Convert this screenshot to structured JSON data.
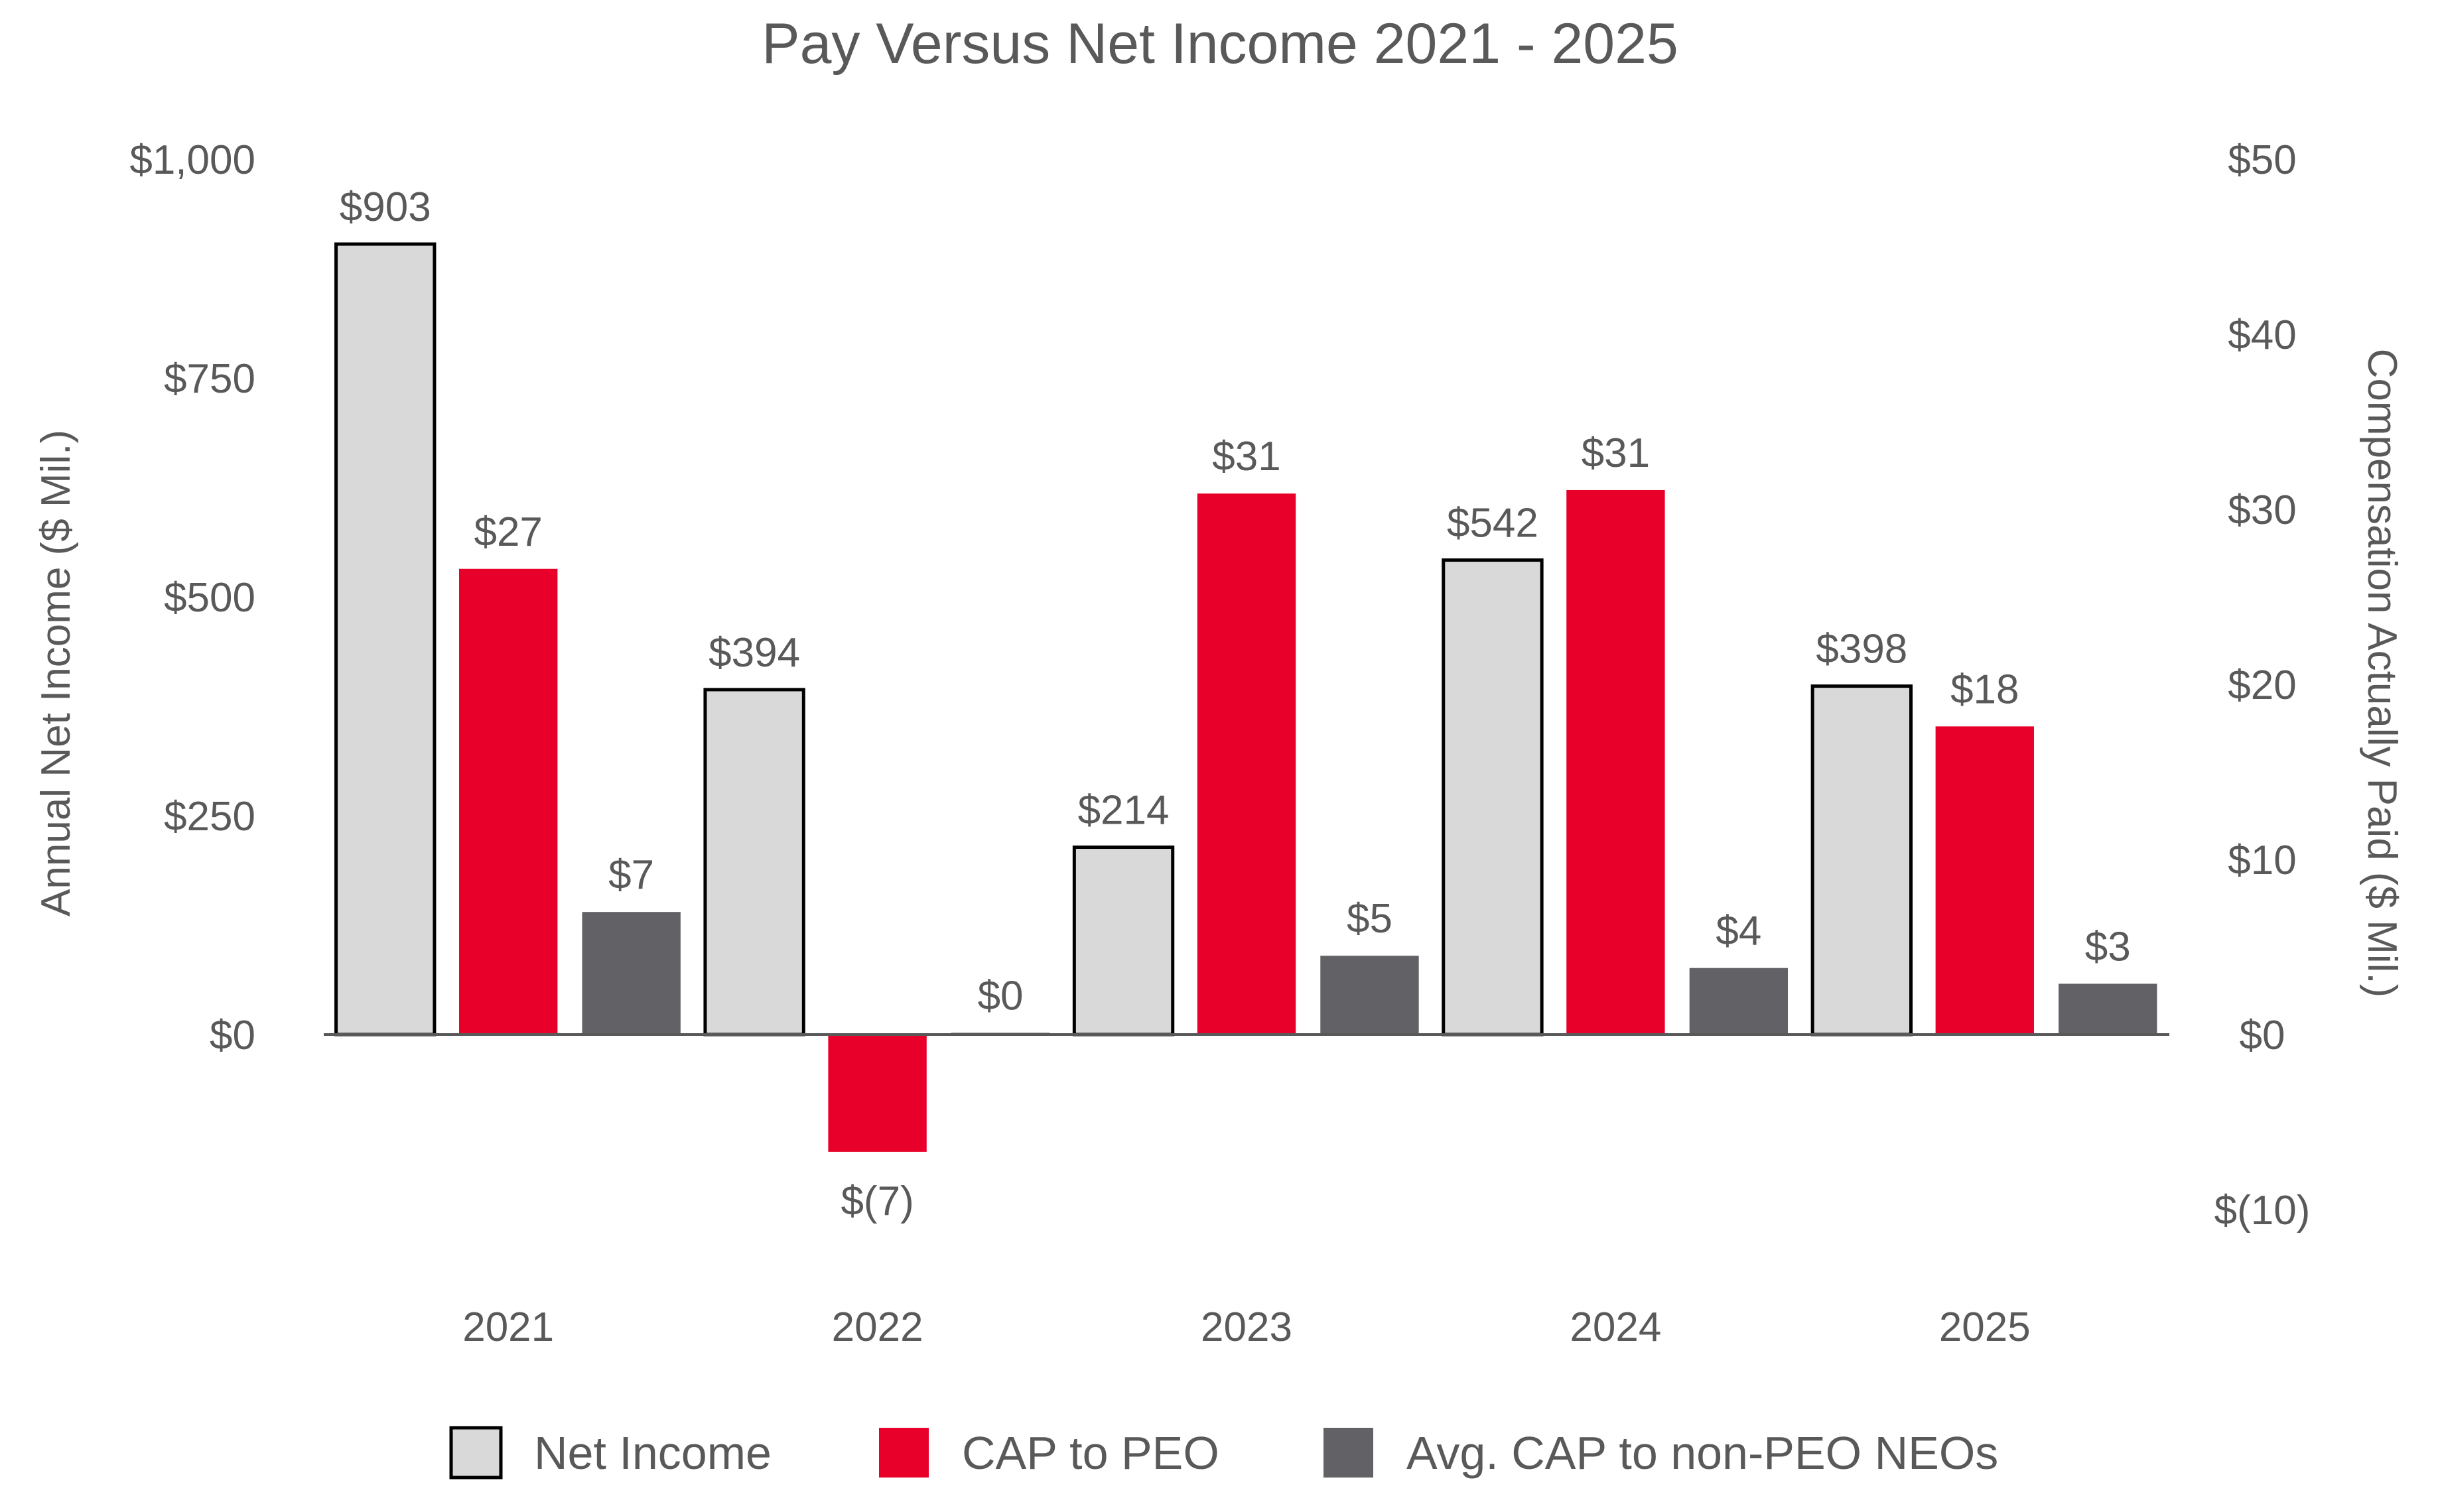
{
  "chart_data": {
    "type": "bar",
    "title": "Pay Versus Net Income 2021 - 2025",
    "categories": [
      "2021",
      "2022",
      "2023",
      "2024",
      "2025"
    ],
    "y_left": {
      "label": "Annual Net Income ($ Mil.)",
      "lim": [
        -200,
        1000
      ],
      "ticks": [
        0,
        250,
        500,
        750,
        1000
      ],
      "tick_labels": [
        "$0",
        "$250",
        "$500",
        "$750",
        "$1,000"
      ]
    },
    "y_right": {
      "label": "Compensation Actually Paid ($ Mil.)",
      "lim": [
        -10,
        50
      ],
      "ticks": [
        -10,
        0,
        10,
        20,
        30,
        40,
        50
      ],
      "tick_labels": [
        "$(10)",
        "$0",
        "$10",
        "$20",
        "$30",
        "$40",
        "$50"
      ]
    },
    "series": [
      {
        "name": "Net Income",
        "axis": "left",
        "color": "#d9d9d9",
        "outline": "#000000",
        "values": [
          903,
          394,
          214,
          542,
          398
        ],
        "labels": [
          "$903",
          "$394",
          "$214",
          "$542",
          "$398"
        ]
      },
      {
        "name": "CAP to PEO",
        "axis": "right",
        "color": "#e8002a",
        "values": [
          26.6,
          -6.7,
          30.9,
          31.1,
          17.6
        ],
        "labels": [
          "$27",
          "$(7)",
          "$31",
          "$31",
          "$18"
        ]
      },
      {
        "name": "Avg. CAP to non-PEO NEOs",
        "axis": "right",
        "color": "#616166",
        "values": [
          7.0,
          0.1,
          4.5,
          3.8,
          2.9
        ],
        "labels": [
          "$7",
          "$0",
          "$5",
          "$4",
          "$3"
        ]
      }
    ],
    "legend_position": "bottom",
    "grid": false
  }
}
